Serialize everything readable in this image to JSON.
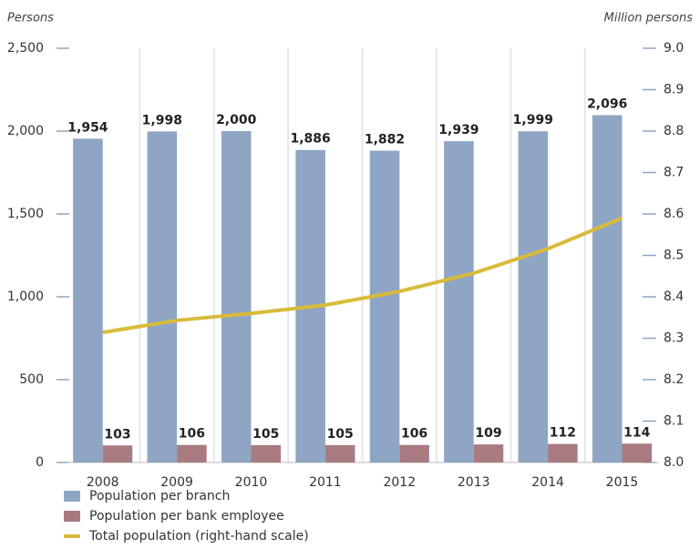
{
  "chart_data": {
    "type": "bar_line",
    "y_label": "Persons",
    "y2_label": "Million persons",
    "categories": [
      "2008",
      "2009",
      "2010",
      "2011",
      "2012",
      "2013",
      "2014",
      "2015"
    ],
    "series": [
      {
        "name": "Population per branch",
        "color": "#8fa5c4",
        "values": [
          1954,
          1998,
          2000,
          1886,
          1882,
          1939,
          1999,
          2096
        ],
        "value_labels": [
          "1,954",
          "1,998",
          "2,000",
          "1,886",
          "1,882",
          "1,939",
          "1,999",
          "2,096"
        ]
      },
      {
        "name": "Population per bank employee",
        "color": "#a87b80",
        "values": [
          103,
          106,
          105,
          105,
          106,
          109,
          112,
          114
        ]
      },
      {
        "name": "Total population (right-hand scale)",
        "color": "#d9bb3b",
        "axis": "y2",
        "line": true,
        "values": [
          8.314,
          8.343,
          8.36,
          8.38,
          8.413,
          8.457,
          8.516,
          8.59
        ]
      }
    ],
    "ylim": [
      0,
      2500
    ],
    "yticks": [
      0,
      500,
      {
        "value": 1000,
        "label": "1,000"
      },
      {
        "value": 1500,
        "label": "1,500"
      },
      {
        "value": 2000,
        "label": "2,000"
      },
      {
        "value": 2500,
        "label": "2,500"
      }
    ],
    "y2lim": [
      8.0,
      9.0
    ],
    "y2ticks": [
      {
        "value": 8.0,
        "label": "8.0"
      },
      8.1,
      8.2,
      8.3,
      8.4,
      8.5,
      8.6,
      8.7,
      8.8,
      8.9,
      {
        "value": 9.0,
        "label": "9.0"
      }
    ],
    "grid": true
  }
}
